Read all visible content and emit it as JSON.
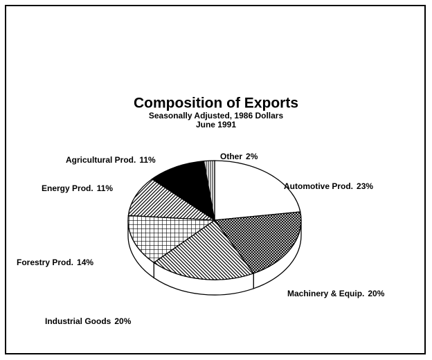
{
  "chart_data": {
    "type": "pie3d",
    "title": "Composition of Exports",
    "subtitles": [
      "Seasonally Adjusted, 1986 Dollars",
      "June 1991"
    ],
    "categories": [
      "Automotive Prod.",
      "Machinery & Equip.",
      "Industrial Goods",
      "Forestry Prod.",
      "Energy Prod.",
      "Agricultural Prod.",
      "Other"
    ],
    "values": [
      23,
      20,
      20,
      14,
      11,
      11,
      2
    ],
    "value_labels": [
      "23%",
      "20%",
      "20%",
      "14%",
      "11%",
      "11%",
      "2%"
    ]
  }
}
